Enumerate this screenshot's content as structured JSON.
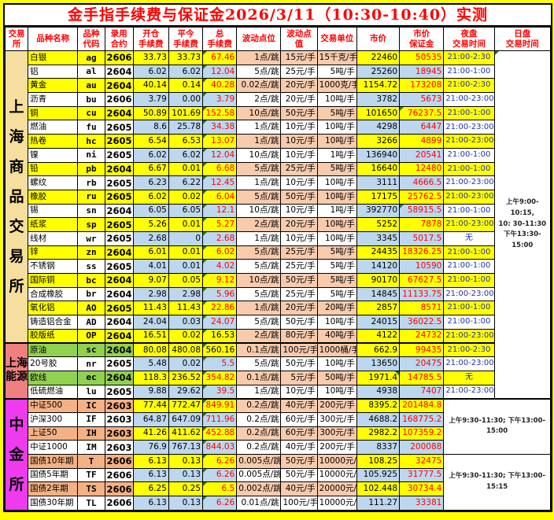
{
  "title": "金手指手续费与保证金2026/3/11（10:30-10:40）实测",
  "columns": [
    "交易所",
    "品种名称",
    "品种\n代码",
    "录用\n合约",
    "开仓\n手续费",
    "平今\n手续费",
    "总\n手续费",
    "波动点位",
    "波动点值",
    "交易单位",
    "市价",
    "市价\n保证金",
    "夜盘\n交易时间",
    "日盘\n交易时间"
  ],
  "colors": {
    "page_bg": "#FFFF00",
    "title_red": "#FF0000",
    "header_red": "#FF0000",
    "row_yellow": "#FFFF00",
    "row_blue": "#BDD7EE",
    "tick_salmon": "#F8CBAD",
    "ine_green": "#92D050",
    "cffex_salmon": "#F4B183",
    "shfe_label_bg": "#F6DE9E",
    "ine_label_bg": "#F08080",
    "cffex_label_bg": "#EE3BEE",
    "fee_red": "#FF0000",
    "night_blue": "#2233AA",
    "note_green": "#1E7B1E"
  },
  "sections": [
    {
      "start": 0,
      "rowspan": 21,
      "label": "上海商品交易所",
      "lines": [
        "上",
        "海",
        "商",
        "品",
        "交",
        "易",
        "所"
      ],
      "bg": "#F6DE9E",
      "cls": "big"
    },
    {
      "start": 21,
      "rowspan": 4,
      "label": "上海能源",
      "lines": [
        "上海",
        "能源"
      ],
      "bg": "#F08080",
      "cls": "small"
    },
    {
      "start": 25,
      "rowspan": 8,
      "label": "中金所",
      "lines": [
        "中",
        "金",
        "所"
      ],
      "bg": "#EE3BEE",
      "cls": "big"
    }
  ],
  "day_blocks": [
    {
      "start": 0,
      "rowspan": 25,
      "colspan": 1,
      "tri": 1,
      "lines": [
        "上午9:00-10:15,",
        "10: 30-11:30",
        "下午13:30-15:00"
      ]
    },
    {
      "start": 25,
      "rowspan": 4,
      "colspan": 2,
      "lines": [
        "上午9:30-11:30; 下午13:00-15:00"
      ]
    },
    {
      "start": 29,
      "rowspan": 4,
      "colspan": 2,
      "lines": [
        "上午9:30-11:30; 下午13:00-15:15"
      ]
    }
  ],
  "rows": [
    {
      "n": "白银",
      "c": "ag",
      "k": "2606",
      "o": "33.73",
      "cl": "33.73",
      "t": "67.46",
      "ti": "1点/跳",
      "tv": "15元/手",
      "u": "15千克/手",
      "p": "22460",
      "m": "50535",
      "ng": "21:00-2:30",
      "h": "y"
    },
    {
      "n": "铝",
      "c": "al",
      "k": "2604",
      "o": "6.02",
      "cl": "6.02",
      "t": "12.04",
      "ti": "5点/跳",
      "tv": "25元/手",
      "u": "5吨/手",
      "p": "25260",
      "m": "18945",
      "ng": "21:00-1:00",
      "h": ""
    },
    {
      "n": "黄金",
      "c": "au",
      "k": "2604",
      "o": "40.14",
      "cl": "0.14",
      "t": "40.28",
      "ti": "0.02点/跳",
      "tv": "20元/手",
      "u": "1000克/手",
      "p": "1154.72",
      "m": "173208",
      "ng": "21:00-2:30",
      "h": "y"
    },
    {
      "n": "沥青",
      "c": "bu",
      "k": "2606",
      "o": "3.79",
      "cl": "0.00",
      "t": "3.79",
      "ti": "2点/跳",
      "tv": "20元/手",
      "u": "10吨/手",
      "p": "3782",
      "m": "5673",
      "ng": "21:00-23:00",
      "h": ""
    },
    {
      "n": "铜",
      "c": "cu",
      "k": "2604",
      "o": "50.89",
      "cl": "101.69",
      "t": "152.58",
      "ti": "10点/跳",
      "tv": "50元/手",
      "u": "5吨/手",
      "p": "101650",
      "m": "76237.5",
      "mn": 1,
      "ng": "21:00-1:00",
      "h": "y"
    },
    {
      "n": "燃油",
      "c": "fu",
      "k": "2605",
      "o": "8.6",
      "cl": "25.78",
      "t": "34.38",
      "ti": "1点/跳",
      "tv": "10元/手",
      "u": "10吨/手",
      "p": "4298",
      "m": "6447",
      "ng": "21:00-23:00",
      "h": ""
    },
    {
      "n": "热卷",
      "c": "hc",
      "k": "2605",
      "o": "6.54",
      "cl": "6.53",
      "t": "13.07",
      "ti": "1点/跳",
      "tv": "10元/手",
      "u": "10吨/手",
      "p": "3266",
      "m": "4899",
      "ng": "21:00-23:00",
      "h": "y"
    },
    {
      "n": "镍",
      "c": "ni",
      "k": "2605",
      "o": "6.02",
      "cl": "6.02",
      "t": "12.04",
      "ti": "10点/跳",
      "tv": "10元/手",
      "u": "1吨/手",
      "p": "136940",
      "m": "20541",
      "ng": "21:00-1:00",
      "h": ""
    },
    {
      "n": "铅",
      "c": "pb",
      "k": "2604",
      "o": "6.67",
      "cl": "0.01",
      "t": "6.68",
      "ti": "5点/跳",
      "tv": "25元/手",
      "u": "5吨/手",
      "p": "16640",
      "m": "12480",
      "ng": "21:00-1:00",
      "h": "y"
    },
    {
      "n": "螺纹",
      "c": "rb",
      "k": "2605",
      "o": "6.23",
      "cl": "6.22",
      "t": "12.45",
      "ti": "1点/跳",
      "tv": "10元/手",
      "u": "10吨/手",
      "p": "3111",
      "m": "4666.5",
      "ng": "21:00-23:00",
      "h": ""
    },
    {
      "n": "橡胶",
      "c": "ru",
      "k": "2605",
      "o": "6.02",
      "cl": "0.02",
      "t": "6.04",
      "ti": "5点/跳",
      "tv": "50元/手",
      "u": "10吨/手",
      "p": "17175",
      "m": "25762.5",
      "ng": "21:00-23:00",
      "h": "y"
    },
    {
      "n": "锡",
      "c": "sn",
      "k": "2604",
      "o": "6.05",
      "cl": "6.05",
      "t": "12.1",
      "ti": "10点/跳",
      "tv": "10元/手",
      "u": "1吨/手",
      "p": "392770",
      "m": "58915.5",
      "mn": 1,
      "ng": "21:00-1:00",
      "h": ""
    },
    {
      "n": "纸浆",
      "c": "sp",
      "k": "2605",
      "o": "5.26",
      "cl": "0.01",
      "t": "5.27",
      "ti": "2点/跳",
      "tv": "20元/手",
      "u": "10吨/手",
      "p": "5252",
      "m": "7878",
      "ng": "21:00-23:00",
      "h": "y"
    },
    {
      "n": "线材",
      "c": "wr",
      "k": "2605",
      "o": "2.68",
      "cl": "0",
      "t": "2.68",
      "ti": "1点/跳",
      "tv": "10元/手",
      "u": "10吨/手",
      "p": "3345",
      "m": "5017.5",
      "ng": "无",
      "h": ""
    },
    {
      "n": "锌",
      "c": "zn",
      "k": "2604",
      "o": "6.01",
      "cl": "0.01",
      "t": "6.02",
      "ti": "5点/跳",
      "tv": "25元/手",
      "u": "5吨/手",
      "p": "24435",
      "m": "18326.25",
      "ng": "21:00-1:00",
      "h": "y"
    },
    {
      "n": "不锈钢",
      "c": "ss",
      "k": "2605",
      "o": "4.01",
      "cl": "0.01",
      "t": "4.02",
      "ti": "5点/跳",
      "tv": "25元/手",
      "u": "5吨/手",
      "p": "14120",
      "m": "10590",
      "ng": "21:00-1:00",
      "h": ""
    },
    {
      "n": "国际铜",
      "c": "bc",
      "k": "2604",
      "o": "9.07",
      "cl": "0.05",
      "t": "9.12",
      "ti": "10点/跳",
      "tv": "50元/手",
      "u": "5吨/手",
      "p": "90170",
      "m": "67627.5",
      "ng": "21:00-1:00",
      "h": "y"
    },
    {
      "n": "合成橡胶",
      "c": "br",
      "k": "2604",
      "o": "2.98",
      "cl": "2.98",
      "t": "5.96",
      "ti": "5点/跳",
      "tv": "25元/手",
      "u": "5吨/手",
      "p": "14845",
      "m": "11133.75",
      "ng": "21:00-23:00",
      "h": ""
    },
    {
      "n": "氧化铝",
      "c": "AO",
      "k": "2605",
      "o": "11.43",
      "cl": "11.43",
      "t": "22.86",
      "ti": "1点/跳",
      "tv": "20元/手",
      "u": "20吨/手",
      "p": "2857",
      "m": "8571",
      "ng": "21:00-1:00",
      "h": "y"
    },
    {
      "n": "铸造铝合金",
      "c": "AD",
      "k": "2604",
      "o": "24.04",
      "cl": "0.03",
      "t": "24.07",
      "ti": "5点/跳",
      "tv": "50元/手",
      "u": "10吨/手",
      "p": "24015",
      "m": "36022.5",
      "ng": "21:00-1:00",
      "h": ""
    },
    {
      "n": "胶版纸",
      "c": "OP",
      "k": "2604",
      "o": "16.51",
      "cl": "0.02",
      "t": "16.53",
      "tb": 1,
      "ti": "2点/跳",
      "tv": "80元/手",
      "u": "40吨/手",
      "p": "4122",
      "m": "24732",
      "ng": "21:00-23:00",
      "h": "y"
    },
    {
      "n": "原油",
      "c": "sc",
      "k": "2604",
      "o": "80.08",
      "cl": "480.08",
      "t": "560.16",
      "tb": 1,
      "ti": "0.1点/跳",
      "tv": "100元/手",
      "u": "1000桶/手",
      "p": "662.9",
      "m": "99435",
      "ng": "21:00-2:30",
      "h": "g"
    },
    {
      "n": "20号胶",
      "c": "nr",
      "k": "2605",
      "o": "5.48",
      "cl": "0.02",
      "t": "5.5",
      "ti": "5点/跳",
      "tv": "50元/手",
      "u": "10吨/手",
      "p": "13650",
      "m": "20475",
      "ng": "21:00-23:00",
      "h": ""
    },
    {
      "n": "欧线",
      "c": "ec",
      "k": "2604",
      "o": "118.3",
      "cl": "236.52",
      "t": "354.82",
      "ti": "0.1点/跳",
      "tv": "5元/手",
      "u": "50吨/手",
      "p": "1971.4",
      "pn": 1,
      "m": "14785.5",
      "ng": "无",
      "h": "g"
    },
    {
      "n": "低硫燃油",
      "c": "lu",
      "k": "2605",
      "o": "9.88",
      "cl": "29.62",
      "t": "39.5",
      "ti": "1点/跳",
      "tv": "10元/手",
      "u": "10吨/手",
      "p": "4938",
      "m": "7407",
      "ng": "21:00-23:00",
      "h": ""
    },
    {
      "n": "中证500",
      "c": "IC",
      "k": "2603",
      "o": "77.44",
      "cl": "772.47",
      "t": "849.91",
      "ti": "0.2点/跳",
      "tv": "40元/手",
      "u": "200元/手",
      "p": "8395.2",
      "m": "201484.8",
      "h": "s"
    },
    {
      "n": "沪深300",
      "c": "IF",
      "k": "2603",
      "o": "64.87",
      "cl": "647.09",
      "t": "711.96",
      "ti": "0.2点/跳",
      "tv": "60元/手",
      "u": "300元/手",
      "p": "4688.2",
      "m": "168775.2",
      "h": ""
    },
    {
      "n": "上证50",
      "c": "IH",
      "k": "2603",
      "o": "41.26",
      "cl": "411.62",
      "t": "452.88",
      "ti": "0.2点/跳",
      "tv": "60元/手",
      "u": "300元/手",
      "p": "2982.2",
      "m": "107359.2",
      "h": "s"
    },
    {
      "n": "中证1000",
      "c": "IM",
      "k": "2603",
      "o": "76.9",
      "cl": "767.13",
      "t": "844.03",
      "ti": "0.2点/跳",
      "tv": "40元/手",
      "u": "200元/手",
      "p": "8337",
      "m": "200088",
      "h": ""
    },
    {
      "n": "国债10年期",
      "c": "T",
      "k": "2606",
      "o": "6.13",
      "cl": "0.13",
      "t": "6.26",
      "ti": "0.005点/跳",
      "tv": "50元/手",
      "u": "10000元/手",
      "p": "108.25",
      "m": "32475",
      "h": "s"
    },
    {
      "n": "国债5年期",
      "c": "TF",
      "k": "2606",
      "o": "6.13",
      "cl": "0.13",
      "t": "6.26",
      "ti": "0.005点/跳",
      "tv": "50元/手",
      "u": "10000元/手",
      "p": "105.925",
      "m": "31777.5",
      "h": ""
    },
    {
      "n": "国债2年期",
      "c": "TS",
      "k": "2606",
      "o": "6.25",
      "cl": "0.25",
      "t": "6.5",
      "ti": "0.002点/跳",
      "tv": "40元/手",
      "u": "20000元/手",
      "p": "102.448",
      "m": "30734.4",
      "h": "s"
    },
    {
      "n": "国债30年期",
      "c": "TL",
      "k": "2606",
      "o": "6.13",
      "cl": "0.13",
      "t": "6.26",
      "ti": "0.01点/跳",
      "tv": "100元/手",
      "u": "10000元/手",
      "p": "111.27",
      "m": "33381",
      "h": ""
    }
  ]
}
